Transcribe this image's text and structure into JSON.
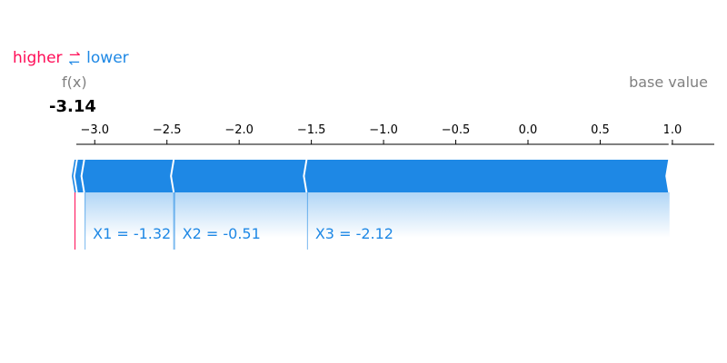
{
  "legend": {
    "higher": "higher",
    "lower": "lower",
    "arrows": "⇄"
  },
  "fx": {
    "label": "f(x)",
    "value": "-3.14"
  },
  "base": {
    "label": "base value",
    "value": 0.98
  },
  "colors": {
    "negative": "#1e88e5",
    "positive": "#ff0d57",
    "text_gray": "#808080"
  },
  "chart_data": {
    "type": "bar",
    "title": "",
    "xlim": [
      -3.14,
      1.29
    ],
    "ticks": [
      -3.0,
      -2.5,
      -2.0,
      -1.5,
      -1.0,
      -0.5,
      0.0,
      0.5,
      1.0
    ],
    "tick_labels": [
      "−3.0",
      "−2.5",
      "−2.0",
      "−1.5",
      "−1.0",
      "−0.5",
      "0.0",
      "0.5",
      "1.0"
    ],
    "output_value": -3.14,
    "base_value": 0.98,
    "features": [
      {
        "label": "X3 = -2.12",
        "effect": -2.51
      },
      {
        "label": "X2 = -0.51",
        "effect": -0.92
      },
      {
        "label": "X1 = -1.32",
        "effect": -0.62
      },
      {
        "label": "",
        "effect": -0.05
      },
      {
        "label": "",
        "effect": -0.02
      }
    ]
  }
}
